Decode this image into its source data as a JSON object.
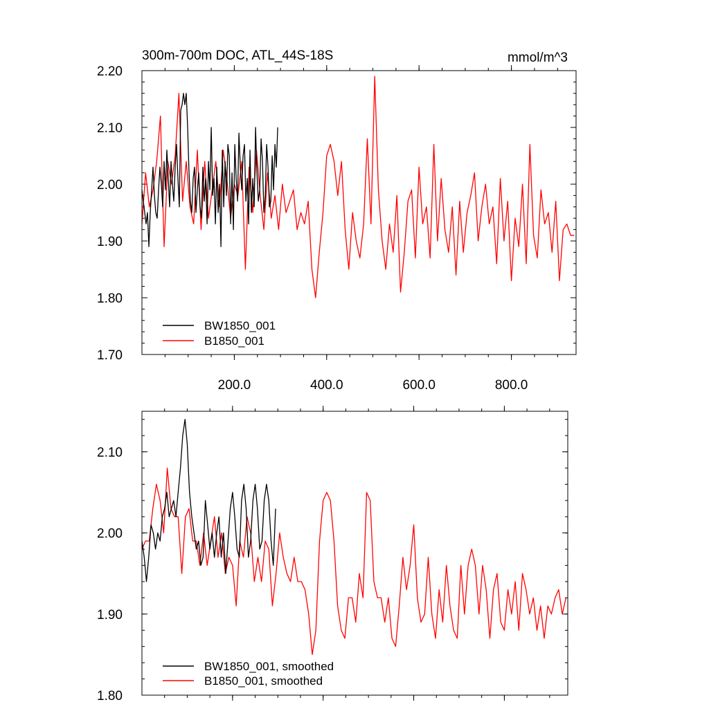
{
  "chart_data": [
    {
      "type": "line",
      "title": "300m-700m DOC, ATL_44S-18S",
      "units_label": "mmol/m^3",
      "xlim": [
        0,
        940
      ],
      "ylim": [
        1.7,
        2.2
      ],
      "x_ticks": [
        200,
        400,
        600,
        800
      ],
      "x_tick_labels": [
        "200.0",
        "400.0",
        "600.0",
        "800.0"
      ],
      "x_tick_labels_position": "bottom",
      "x_minor_step": 50,
      "y_ticks": [
        1.7,
        1.8,
        1.9,
        2.0,
        2.1,
        2.2
      ],
      "y_tick_labels": [
        "1.70",
        "1.80",
        "1.90",
        "2.00",
        "2.10",
        "2.20"
      ],
      "y_minor_step": 0.02,
      "grid": false,
      "legend_position": "bottom-left",
      "series": [
        {
          "name": "BW1850_001",
          "color": "#000000",
          "x": [
            0,
            3,
            6,
            9,
            12,
            15,
            18,
            21,
            24,
            27,
            30,
            33,
            36,
            39,
            42,
            45,
            48,
            51,
            54,
            57,
            60,
            63,
            66,
            69,
            72,
            75,
            78,
            81,
            84,
            87,
            90,
            93,
            96,
            99,
            102,
            105,
            108,
            111,
            114,
            117,
            120,
            123,
            126,
            129,
            132,
            135,
            138,
            141,
            144,
            147,
            150,
            153,
            156,
            159,
            162,
            165,
            168,
            171,
            174,
            177,
            180,
            183,
            186,
            189,
            192,
            195,
            198,
            201,
            204,
            207,
            210,
            213,
            216,
            219,
            222,
            225,
            228,
            231,
            234,
            237,
            240,
            243,
            246,
            249,
            252,
            255,
            258,
            261,
            264,
            267,
            270,
            273,
            276,
            279,
            282,
            285,
            288,
            291,
            294
          ],
          "values": [
            1.99,
            1.97,
            1.95,
            1.93,
            1.95,
            1.89,
            1.95,
            1.99,
            2.03,
            1.98,
            1.95,
            1.94,
            1.99,
            2.03,
            2.0,
            1.96,
            2.04,
            1.99,
            2.06,
            2.01,
            1.96,
            2.04,
            2.0,
            1.97,
            2.03,
            2.07,
            2.01,
            1.96,
            2.13,
            2.14,
            2.16,
            2.14,
            2.16,
            2.1,
            2.02,
            1.97,
            1.95,
            2.01,
            2.03,
            1.95,
            1.99,
            2.02,
            1.96,
            1.94,
            2.03,
            1.97,
            2.01,
            1.93,
            2.04,
            1.99,
            2.1,
            1.98,
            2.01,
            1.93,
            2.03,
            1.95,
            2.0,
            1.89,
            2.06,
            1.96,
            2.04,
            1.98,
            2.07,
            2.05,
            1.93,
            2.02,
            1.92,
            2.07,
            2.01,
            1.97,
            2.09,
            2.03,
            1.99,
            2.05,
            2.07,
            1.97,
            2.01,
            1.93,
            2.06,
            1.95,
            2.01,
            1.96,
            2.1,
            2.02,
            1.97,
            1.99,
            2.08,
            2.04,
            1.95,
            1.98,
            2.07,
            2.03,
            1.96,
            1.97,
            2.05,
            1.99,
            2.07,
            2.03,
            2.1
          ]
        },
        {
          "name": "B1850_001",
          "color": "#ff0000",
          "x": [
            0,
            8,
            16,
            24,
            32,
            40,
            48,
            56,
            64,
            72,
            80,
            88,
            96,
            104,
            112,
            120,
            128,
            136,
            144,
            152,
            160,
            168,
            176,
            184,
            192,
            200,
            208,
            216,
            224,
            232,
            240,
            248,
            256,
            264,
            272,
            280,
            288,
            296,
            304,
            312,
            320,
            328,
            336,
            344,
            352,
            360,
            368,
            376,
            384,
            392,
            400,
            408,
            416,
            424,
            432,
            440,
            448,
            456,
            464,
            472,
            480,
            488,
            496,
            504,
            512,
            520,
            528,
            536,
            544,
            552,
            560,
            568,
            576,
            584,
            592,
            600,
            608,
            616,
            624,
            632,
            640,
            648,
            656,
            664,
            672,
            680,
            688,
            696,
            704,
            712,
            720,
            728,
            736,
            744,
            752,
            760,
            768,
            776,
            784,
            792,
            800,
            808,
            816,
            824,
            832,
            840,
            848,
            856,
            864,
            872,
            880,
            888,
            896,
            904,
            912,
            920,
            928,
            936
          ],
          "values": [
            1.93,
            2.02,
            1.96,
            1.99,
            2.04,
            2.12,
            1.89,
            2.04,
            2.0,
            2.05,
            2.16,
            1.97,
            2.04,
            1.96,
            1.93,
            2.06,
            1.92,
            2.04,
            1.94,
            1.99,
            2.04,
            1.96,
            2.06,
            2.01,
            1.94,
            2.0,
            1.98,
            2.04,
            1.85,
            2.03,
            1.95,
            2.06,
            1.98,
            1.92,
            2.02,
            1.94,
            1.98,
            1.92,
            2.0,
            1.95,
            1.97,
            1.99,
            1.92,
            1.95,
            1.93,
            1.97,
            1.85,
            1.8,
            1.88,
            1.95,
            2.05,
            2.07,
            2.04,
            1.98,
            2.04,
            1.92,
            1.85,
            1.95,
            1.9,
            1.87,
            1.93,
            2.08,
            1.93,
            2.19,
            1.99,
            1.9,
            1.85,
            1.93,
            1.88,
            1.98,
            1.81,
            1.88,
            1.97,
            1.99,
            1.87,
            2.03,
            1.93,
            1.96,
            1.87,
            2.07,
            1.9,
            2.01,
            1.92,
            1.88,
            1.96,
            1.84,
            1.97,
            1.88,
            1.95,
            1.98,
            2.02,
            1.9,
            1.96,
            2.0,
            1.93,
            1.96,
            1.86,
            2.01,
            1.9,
            1.97,
            1.83,
            1.94,
            1.89,
            2.0,
            1.86,
            2.07,
            1.91,
            1.87,
            1.99,
            1.93,
            1.95,
            1.88,
            1.97,
            1.83,
            1.92,
            1.93,
            1.91,
            1.91
          ]
        }
      ]
    },
    {
      "type": "line",
      "title": "",
      "xlim": [
        0,
        940
      ],
      "ylim": [
        1.8,
        2.15
      ],
      "x_ticks": [
        200,
        400,
        600,
        800
      ],
      "x_tick_labels": [],
      "x_minor_step": 50,
      "y_ticks": [
        1.8,
        1.9,
        2.0,
        2.1
      ],
      "y_tick_labels": [
        "1.80",
        "1.90",
        "2.00",
        "2.10"
      ],
      "y_minor_step": 0.02,
      "grid": false,
      "legend_position": "bottom-left",
      "series": [
        {
          "name": "BW1850_001, smoothed",
          "color": "#000000",
          "x": [
            0,
            5,
            10,
            15,
            20,
            25,
            30,
            35,
            40,
            45,
            50,
            55,
            60,
            65,
            70,
            75,
            80,
            85,
            90,
            95,
            100,
            105,
            110,
            115,
            120,
            125,
            130,
            135,
            140,
            145,
            150,
            155,
            160,
            165,
            170,
            175,
            180,
            185,
            190,
            195,
            200,
            205,
            210,
            215,
            220,
            225,
            230,
            235,
            240,
            245,
            250,
            255,
            260,
            265,
            270,
            275,
            280,
            285,
            290,
            295
          ],
          "values": [
            1.99,
            1.97,
            1.94,
            1.97,
            2.01,
            2.0,
            1.98,
            2.0,
            1.99,
            2.02,
            2.03,
            2.05,
            2.02,
            2.03,
            2.04,
            2.02,
            2.05,
            2.08,
            2.12,
            2.14,
            2.11,
            2.05,
            2.02,
            2.0,
            1.98,
            1.99,
            1.96,
            1.97,
            2.04,
            2.01,
            1.98,
            2.0,
            1.97,
            2.0,
            2.02,
            1.97,
            2.0,
            1.95,
            1.99,
            2.03,
            2.05,
            2.02,
            1.98,
            1.97,
            2.04,
            2.06,
            2.03,
            1.97,
            1.99,
            2.04,
            2.06,
            2.03,
            1.98,
            1.99,
            2.04,
            2.06,
            2.04,
            1.99,
            1.96,
            2.03
          ]
        },
        {
          "name": "B1850_001, smoothed",
          "color": "#ff0000",
          "x": [
            0,
            8,
            16,
            24,
            32,
            40,
            48,
            56,
            64,
            72,
            80,
            88,
            96,
            104,
            112,
            120,
            128,
            136,
            144,
            152,
            160,
            168,
            176,
            184,
            192,
            200,
            208,
            216,
            224,
            232,
            240,
            248,
            256,
            264,
            272,
            280,
            288,
            296,
            304,
            312,
            320,
            328,
            336,
            344,
            352,
            360,
            368,
            376,
            384,
            392,
            400,
            408,
            416,
            424,
            432,
            440,
            448,
            456,
            464,
            472,
            480,
            488,
            496,
            504,
            512,
            520,
            528,
            536,
            544,
            552,
            560,
            568,
            576,
            584,
            592,
            600,
            608,
            616,
            624,
            632,
            640,
            648,
            656,
            664,
            672,
            680,
            688,
            696,
            704,
            712,
            720,
            728,
            736,
            744,
            752,
            760,
            768,
            776,
            784,
            792,
            800,
            808,
            816,
            824,
            832,
            840,
            848,
            856,
            864,
            872,
            880,
            888,
            896,
            904,
            912,
            920,
            928,
            936
          ],
          "values": [
            1.98,
            1.99,
            1.99,
            2.03,
            2.06,
            2.04,
            2.0,
            2.08,
            2.03,
            2.02,
            2.02,
            1.95,
            2.02,
            2.03,
            1.99,
            1.99,
            1.96,
            2.0,
            1.96,
            1.99,
            2.02,
            1.97,
            2.0,
            1.95,
            1.97,
            1.96,
            1.91,
            1.99,
            1.97,
            2.02,
            2.0,
            1.94,
            1.97,
            1.94,
            1.99,
            1.98,
            1.91,
            1.95,
            2.0,
            1.97,
            1.95,
            1.94,
            1.97,
            1.94,
            1.94,
            1.93,
            1.9,
            1.85,
            1.88,
            1.99,
            2.04,
            2.05,
            2.04,
            1.99,
            1.91,
            1.88,
            1.87,
            1.92,
            1.92,
            1.89,
            1.95,
            1.92,
            2.05,
            2.04,
            1.94,
            1.92,
            1.92,
            1.89,
            1.92,
            1.87,
            1.86,
            1.91,
            1.97,
            1.93,
            1.96,
            2.01,
            1.92,
            1.89,
            1.9,
            1.97,
            1.9,
            1.87,
            1.93,
            1.89,
            1.96,
            1.91,
            1.88,
            1.87,
            1.96,
            1.9,
            1.96,
            1.98,
            1.96,
            1.9,
            1.96,
            1.93,
            1.87,
            1.93,
            1.95,
            1.89,
            1.88,
            1.93,
            1.9,
            1.94,
            1.88,
            1.95,
            1.93,
            1.9,
            1.92,
            1.88,
            1.91,
            1.87,
            1.91,
            1.9,
            1.92,
            1.93,
            1.9,
            1.92
          ]
        }
      ]
    }
  ]
}
